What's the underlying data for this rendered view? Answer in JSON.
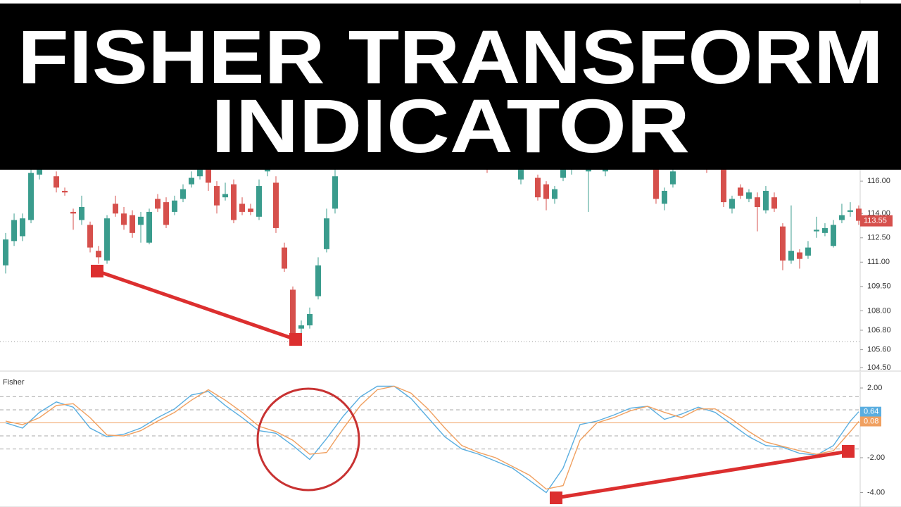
{
  "banner": {
    "line1": "FISHER TRANSFORM",
    "line2": "INDICATOR"
  },
  "chart_data": [
    {
      "type": "candlestick",
      "xlim": [
        -0.67,
        101.17
      ],
      "ylim": [
        104.28,
        127.17
      ],
      "yticks": [
        {
          "value": 104.5,
          "label": "104.50"
        },
        {
          "value": 105.6,
          "label": "105.60"
        },
        {
          "value": 106.8,
          "label": "106.80"
        },
        {
          "value": 108,
          "label": "108.00"
        },
        {
          "value": 109.5,
          "label": "109.50"
        },
        {
          "value": 111,
          "label": "111.00"
        },
        {
          "value": 112.5,
          "label": "112.50"
        },
        {
          "value": 114,
          "label": "114.00"
        },
        {
          "value": 116,
          "label": "116.00"
        }
      ],
      "up_color": "#3a9c8d",
      "down_color": "#d6504c",
      "dotted_level": 106.1,
      "x": [
        0,
        1,
        2,
        3,
        4,
        5,
        6,
        7,
        8,
        9,
        10,
        11,
        12,
        13,
        14,
        15,
        16,
        17,
        18,
        19,
        20,
        21,
        22,
        23,
        24,
        25,
        26,
        27,
        28,
        29,
        30,
        31,
        32,
        33,
        34,
        35,
        36,
        37,
        38,
        39,
        57,
        61,
        63,
        64,
        65,
        66,
        67,
        69,
        71,
        77,
        78,
        79,
        83,
        85,
        86,
        87,
        88,
        89,
        90,
        91,
        92,
        93,
        94,
        95,
        96,
        97,
        98,
        99,
        100,
        101
      ],
      "open": [
        110.8,
        112.3,
        112.6,
        113.6,
        116.4,
        117.5,
        116.3,
        115.4,
        114.1,
        113.6,
        113.3,
        111.7,
        111.1,
        114.6,
        114.0,
        113.9,
        113.3,
        112.2,
        114.9,
        114.7,
        114.1,
        114.9,
        115.8,
        116.3,
        117.5,
        115.7,
        115.0,
        115.8,
        114.6,
        114.3,
        113.8,
        116.6,
        115.9,
        111.9,
        109.3,
        106.9,
        107.1,
        108.9,
        111.8,
        114.3,
        116.8,
        116.1,
        116.2,
        115.8,
        114.9,
        116.2,
        116.7,
        116.6,
        116.6,
        117.0,
        114.6,
        115.8,
        116.9,
        116.7,
        114.3,
        115.6,
        114.9,
        115.0,
        114.2,
        115.0,
        113.2,
        111.1,
        111.6,
        111.4,
        112.9,
        112.8,
        112.0,
        113.6,
        114.1,
        114.3
      ],
      "high": [
        112.8,
        114.0,
        114.0,
        117.0,
        118.0,
        117.8,
        116.6,
        115.6,
        114.3,
        115.1,
        113.5,
        112.0,
        113.9,
        115.1,
        114.4,
        114.2,
        114.1,
        114.3,
        115.2,
        115.0,
        115.1,
        115.8,
        116.6,
        117.9,
        117.8,
        116.0,
        115.9,
        116.1,
        115.0,
        114.6,
        116.1,
        117.4,
        116.3,
        112.2,
        109.5,
        107.4,
        108.2,
        111.3,
        114.3,
        117.0,
        117.1,
        117.0,
        116.4,
        116.0,
        115.7,
        117.0,
        117.0,
        117.0,
        117.0,
        117.3,
        115.6,
        116.9,
        117.1,
        116.9,
        115.1,
        115.8,
        115.5,
        115.3,
        115.7,
        115.3,
        113.4,
        114.5,
        111.8,
        112.3,
        113.8,
        113.4,
        113.6,
        114.6,
        114.7,
        114.5
      ],
      "low": [
        110.3,
        112.0,
        112.3,
        113.4,
        116.1,
        116.9,
        115.3,
        115.1,
        113.0,
        113.3,
        111.6,
        110.9,
        110.9,
        113.8,
        113.0,
        112.5,
        112.2,
        112.1,
        114.1,
        113.1,
        113.9,
        114.7,
        115.6,
        116.1,
        115.4,
        114.0,
        114.8,
        113.4,
        113.9,
        113.9,
        113.6,
        116.3,
        112.8,
        110.4,
        106.4,
        106.1,
        106.9,
        108.7,
        111.6,
        114.0,
        116.5,
        115.8,
        114.8,
        114.2,
        114.6,
        116.0,
        116.4,
        114.1,
        116.3,
        114.6,
        114.2,
        115.6,
        116.5,
        114.4,
        114.0,
        114.9,
        114.7,
        112.9,
        114.0,
        114.1,
        110.5,
        110.9,
        110.6,
        111.2,
        112.5,
        112.6,
        111.9,
        113.4,
        113.8,
        113.3
      ],
      "close": [
        112.4,
        113.6,
        113.7,
        116.5,
        117.5,
        117.2,
        115.6,
        115.3,
        114.0,
        114.4,
        111.9,
        111.3,
        113.7,
        114.0,
        113.3,
        112.8,
        113.8,
        114.1,
        114.3,
        113.3,
        114.8,
        115.5,
        116.2,
        117.5,
        115.9,
        114.5,
        115.2,
        113.6,
        114.1,
        114.1,
        115.7,
        117.0,
        113.1,
        110.6,
        106.6,
        107.1,
        107.8,
        110.8,
        113.7,
        116.3,
        116.7,
        116.7,
        115.0,
        114.9,
        115.5,
        116.7,
        116.8,
        116.7,
        116.8,
        114.9,
        115.4,
        116.6,
        116.7,
        114.7,
        114.9,
        115.1,
        115.3,
        114.4,
        115.4,
        114.3,
        111.1,
        111.7,
        111.2,
        111.9,
        113.0,
        113.1,
        113.3,
        113.9,
        114.2,
        113.55
      ]
    },
    {
      "type": "line",
      "title": "Fisher",
      "xlim": [
        -0.67,
        101.17
      ],
      "ylim": [
        -4.83,
        2.93
      ],
      "yticks": [
        {
          "value": -4,
          "label": "-4.00"
        },
        {
          "value": -2,
          "label": "-2.00"
        },
        {
          "value": 2,
          "label": "2.00"
        }
      ],
      "dashed_levels": [
        1.5,
        0.75,
        -0.75,
        -1.5
      ],
      "zero_level": 0,
      "x": [
        0,
        2,
        4,
        6,
        8,
        10,
        12,
        14,
        16,
        18,
        20,
        22,
        24,
        26,
        28,
        30,
        32,
        34,
        36,
        38,
        40,
        42,
        44,
        46,
        48,
        50,
        52,
        54,
        56,
        58,
        60,
        62,
        64,
        66,
        68,
        70,
        72,
        74,
        76,
        78,
        80,
        82,
        84,
        86,
        88,
        90,
        92,
        94,
        96,
        98,
        100,
        101
      ],
      "series": [
        {
          "color": "#5aaee0",
          "values": [
            0.0,
            -0.3,
            0.6,
            1.2,
            0.9,
            -0.3,
            -0.8,
            -0.65,
            -0.3,
            0.3,
            0.8,
            1.6,
            1.8,
            1.0,
            0.3,
            -0.45,
            -0.6,
            -1.3,
            -2.1,
            -0.9,
            0.4,
            1.5,
            2.1,
            2.1,
            1.4,
            0.3,
            -0.8,
            -1.5,
            -1.8,
            -2.2,
            -2.6,
            -3.3,
            -4.0,
            -2.6,
            -0.1,
            0.1,
            0.45,
            0.85,
            0.95,
            0.2,
            0.5,
            0.9,
            0.6,
            -0.1,
            -0.8,
            -1.3,
            -1.4,
            -1.75,
            -1.85,
            -1.3,
            0.1,
            0.64
          ]
        },
        {
          "color": "#f0a060",
          "values": [
            0.1,
            -0.1,
            0.3,
            1.0,
            1.1,
            0.3,
            -0.7,
            -0.75,
            -0.45,
            0.1,
            0.6,
            1.3,
            1.9,
            1.3,
            0.6,
            -0.2,
            -0.5,
            -1.0,
            -1.8,
            -1.7,
            -0.3,
            1.0,
            1.9,
            2.1,
            1.7,
            0.8,
            -0.3,
            -1.3,
            -1.7,
            -2.0,
            -2.5,
            -3.0,
            -3.8,
            -3.6,
            -1.0,
            0.0,
            0.3,
            0.7,
            0.95,
            0.6,
            0.3,
            0.8,
            0.8,
            0.2,
            -0.5,
            -1.1,
            -1.35,
            -1.6,
            -1.8,
            -1.6,
            -0.5,
            0.08
          ]
        }
      ]
    }
  ]
}
